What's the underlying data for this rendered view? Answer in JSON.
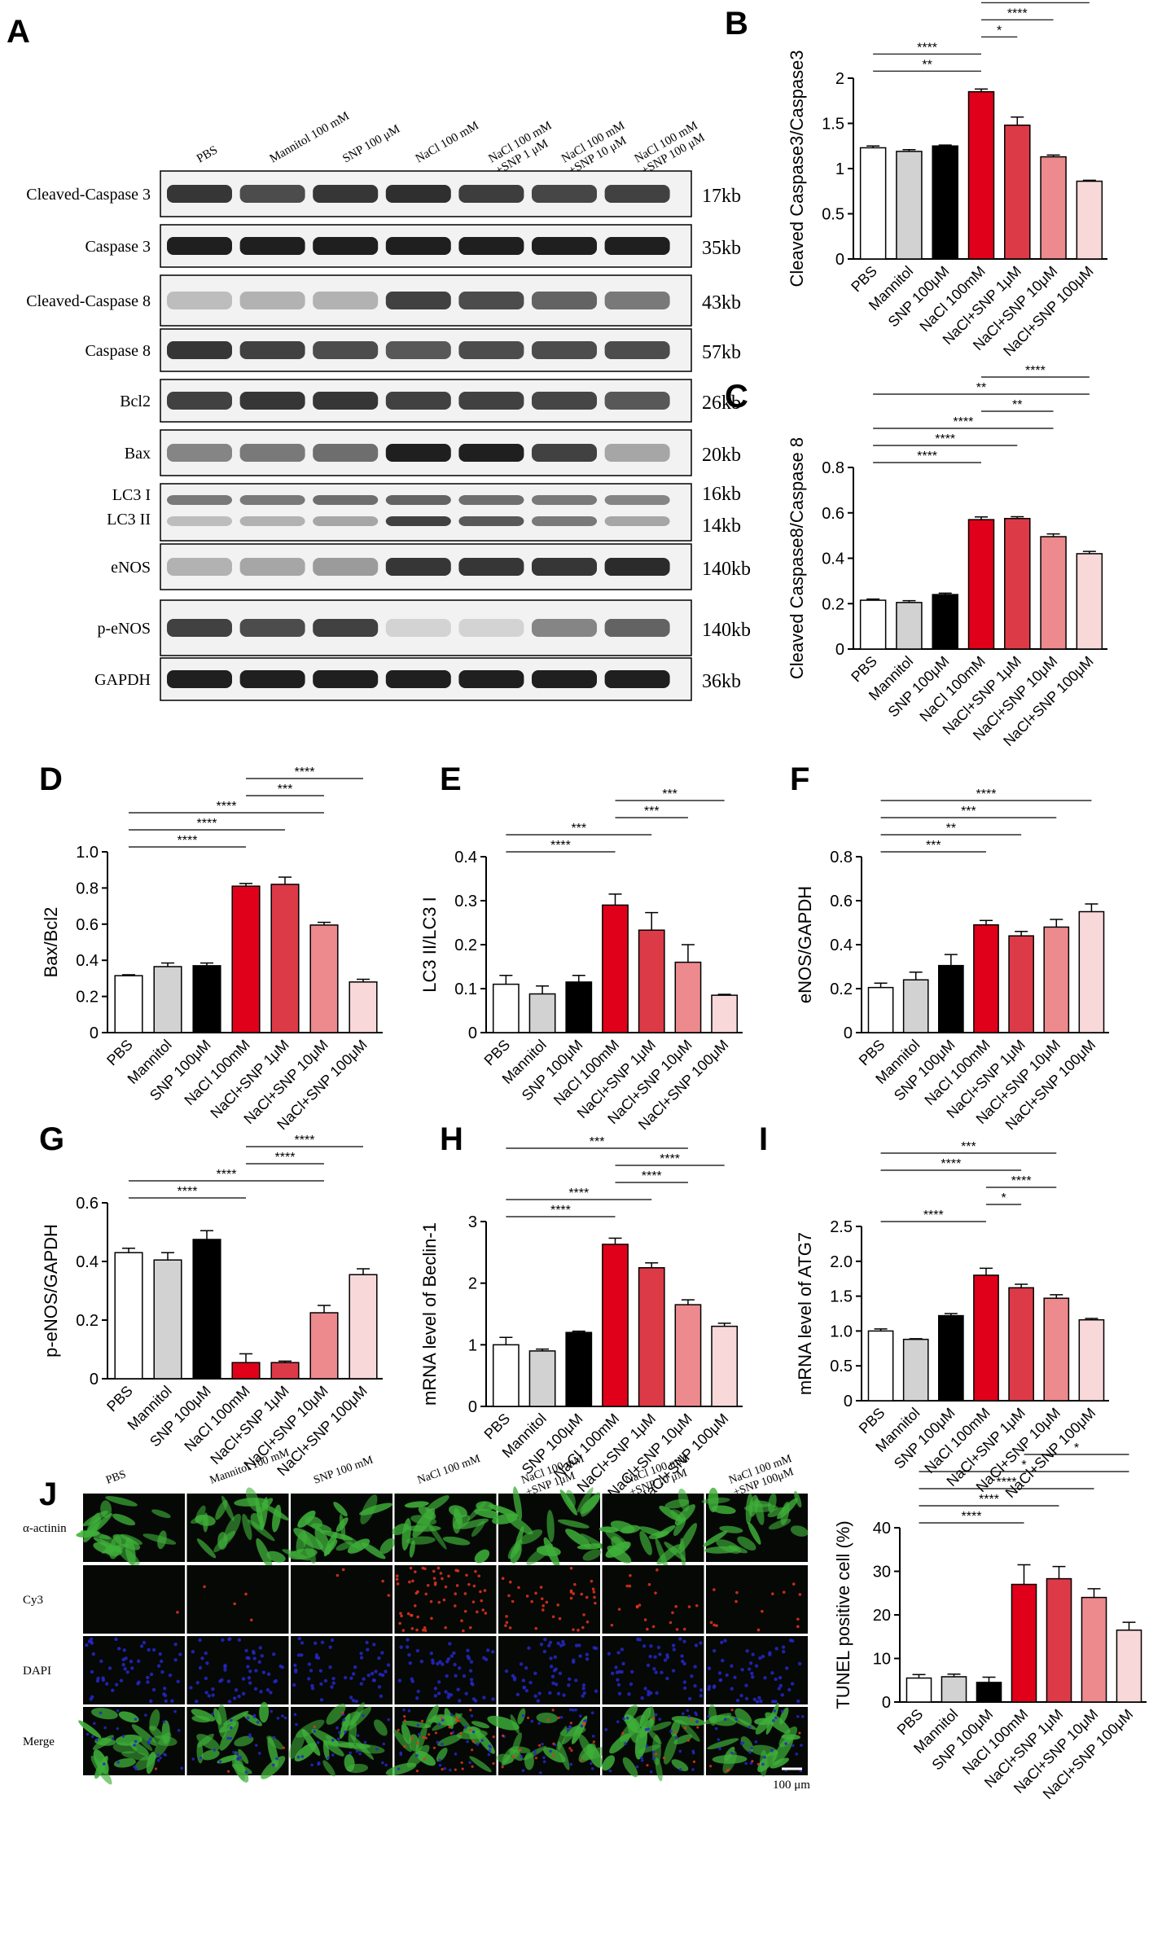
{
  "colors": {
    "bars": [
      "#ffffff",
      "#d2d2d2",
      "#000000",
      "#e1001a",
      "#dd3a47",
      "#ec8a8e",
      "#f9d8da"
    ],
    "bar_edge": "#000000",
    "alpha_actinin": "#3fb03a",
    "cy3": "#e8321e",
    "dapi": "#2727c8"
  },
  "western_blot": {
    "panel_label": "A",
    "lanes": [
      [
        "PBS"
      ],
      [
        "Mannitol 100 mM"
      ],
      [
        "SNP 100 μM"
      ],
      [
        "NaCl 100 mM"
      ],
      [
        "NaCl 100 mM",
        "+SNP 1 μM"
      ],
      [
        "NaCl 100 mM",
        "+SNP 10 μM"
      ],
      [
        "NaCl 100 mM",
        "+SNP 100 μM"
      ]
    ],
    "rows": [
      {
        "label": "Cleaved-Caspase 3",
        "size": "17kb",
        "intensity": [
          0.85,
          0.75,
          0.85,
          0.88,
          0.82,
          0.78,
          0.8
        ]
      },
      {
        "label": "Caspase 3",
        "size": "35kb",
        "intensity": [
          0.95,
          0.95,
          0.95,
          0.95,
          0.95,
          0.95,
          0.95
        ]
      },
      {
        "label": "Cleaved-Caspase 8",
        "size": "43kb",
        "intensity": [
          0.25,
          0.3,
          0.3,
          0.8,
          0.75,
          0.65,
          0.55
        ]
      },
      {
        "label": "Caspase 8",
        "size": "57kb",
        "intensity": [
          0.85,
          0.8,
          0.75,
          0.7,
          0.75,
          0.75,
          0.75
        ]
      },
      {
        "label": "Bcl2",
        "size": "26kb",
        "intensity": [
          0.8,
          0.85,
          0.85,
          0.8,
          0.8,
          0.78,
          0.7
        ]
      },
      {
        "label": "Bax",
        "size": "20kb",
        "intensity": [
          0.5,
          0.55,
          0.6,
          0.95,
          0.95,
          0.8,
          0.35
        ]
      },
      {
        "label": "LC3 I",
        "label2": "LC3 II",
        "size": "16kb",
        "size2": "14kb",
        "intensity": [
          0.55,
          0.55,
          0.6,
          0.65,
          0.6,
          0.55,
          0.5
        ],
        "intensity2": [
          0.25,
          0.3,
          0.35,
          0.8,
          0.7,
          0.55,
          0.35
        ]
      },
      {
        "label": "eNOS",
        "size": "140kb",
        "intensity": [
          0.3,
          0.35,
          0.4,
          0.85,
          0.85,
          0.85,
          0.9
        ]
      },
      {
        "label": "p-eNOS",
        "size": "140kb",
        "intensity": [
          0.8,
          0.75,
          0.8,
          0.15,
          0.15,
          0.5,
          0.65
        ]
      },
      {
        "label": "GAPDH",
        "size": "36kb",
        "intensity": [
          0.95,
          0.95,
          0.95,
          0.95,
          0.95,
          0.95,
          0.95
        ]
      }
    ]
  },
  "microscopy": {
    "panel_label": "J",
    "columns": [
      [
        "PBS"
      ],
      [
        "Mannitol 100 mM"
      ],
      [
        "SNP 100 mM"
      ],
      [
        "NaCl 100 mM"
      ],
      [
        "NaCl 100 mM",
        "+SNP 1μM"
      ],
      [
        "NaCl 100 mM",
        "+SNP 10 μM"
      ],
      [
        "NaCl 100 mM",
        "+SNP 100μM"
      ]
    ],
    "rows": [
      "α-actinin",
      "Cy3",
      "DAPI",
      "Merge"
    ],
    "cy3_density": [
      0.02,
      0.06,
      0.05,
      0.9,
      0.55,
      0.3,
      0.2
    ],
    "scale_bar": "100 μm"
  },
  "chart_data": [
    {
      "type": "bar",
      "panel": "B",
      "ylabel": "Cleaved Caspase3/Caspase3",
      "ylim": [
        0,
        2.0
      ],
      "ticks": [
        0,
        0.5,
        1.0,
        1.5,
        2.0
      ],
      "categories": [
        "PBS",
        "Mannitol",
        "SNP 100μM",
        "NaCl 100mM",
        "NaCl+SNP 1μM",
        "NaCl+SNP 10μM",
        "NaCl+SNP 100μM"
      ],
      "values": [
        1.23,
        1.19,
        1.25,
        1.85,
        1.48,
        1.13,
        0.86
      ],
      "errors": [
        0.02,
        0.02,
        0.01,
        0.03,
        0.09,
        0.02,
        0.01
      ],
      "significance": [
        {
          "from": 0,
          "to": 3,
          "label": "**"
        },
        {
          "from": 0,
          "to": 3,
          "label": "****"
        },
        {
          "from": 3,
          "to": 4,
          "label": "*"
        },
        {
          "from": 3,
          "to": 5,
          "label": "****"
        },
        {
          "from": 3,
          "to": 6,
          "label": "****"
        }
      ]
    },
    {
      "type": "bar",
      "panel": "C",
      "ylabel": "Cleaved Caspase8/Caspase 8",
      "ylim": [
        0,
        0.8
      ],
      "ticks": [
        0,
        0.2,
        0.4,
        0.6,
        0.8
      ],
      "categories": [
        "PBS",
        "Mannitol",
        "SNP 100μM",
        "NaCl 100mM",
        "NaCl+SNP 1μM",
        "NaCl+SNP 10μM",
        "NaCl+SNP 100μM"
      ],
      "values": [
        0.215,
        0.205,
        0.24,
        0.57,
        0.575,
        0.495,
        0.42
      ],
      "errors": [
        0.005,
        0.008,
        0.006,
        0.012,
        0.008,
        0.012,
        0.01
      ],
      "significance": [
        {
          "from": 0,
          "to": 3,
          "label": "****"
        },
        {
          "from": 0,
          "to": 4,
          "label": "****"
        },
        {
          "from": 0,
          "to": 5,
          "label": "****"
        },
        {
          "from": 3,
          "to": 5,
          "label": "**"
        },
        {
          "from": 0,
          "to": 6,
          "label": "**"
        },
        {
          "from": 3,
          "to": 6,
          "label": "****"
        }
      ]
    },
    {
      "type": "bar",
      "panel": "D",
      "ylabel": "Bax/Bcl2",
      "ylim": [
        0,
        1.0
      ],
      "ticks": [
        0,
        0.2,
        0.4,
        0.6,
        0.8,
        1.0
      ],
      "categories": [
        "PBS",
        "Mannitol",
        "SNP 100μM",
        "NaCl 100mM",
        "NaCl+SNP 1μM",
        "NaCl+SNP 10μM",
        "NaCl+SNP 100μM"
      ],
      "values": [
        0.315,
        0.365,
        0.37,
        0.81,
        0.82,
        0.595,
        0.28
      ],
      "errors": [
        0.005,
        0.02,
        0.015,
        0.015,
        0.04,
        0.015,
        0.015
      ],
      "significance": [
        {
          "from": 0,
          "to": 3,
          "label": "****"
        },
        {
          "from": 0,
          "to": 4,
          "label": "****"
        },
        {
          "from": 0,
          "to": 5,
          "label": "****"
        },
        {
          "from": 3,
          "to": 5,
          "label": "***"
        },
        {
          "from": 3,
          "to": 6,
          "label": "****"
        }
      ]
    },
    {
      "type": "bar",
      "panel": "E",
      "ylabel": "LC3 II/LC3 I",
      "ylim": [
        0,
        0.4
      ],
      "ticks": [
        0,
        0.1,
        0.2,
        0.3,
        0.4
      ],
      "categories": [
        "PBS",
        "Mannitol",
        "SNP 100μM",
        "NaCl 100mM",
        "NaCl+SNP 1μM",
        "NaCl+SNP 10μM",
        "NaCl+SNP 100μM"
      ],
      "values": [
        0.11,
        0.088,
        0.115,
        0.29,
        0.233,
        0.16,
        0.085
      ],
      "errors": [
        0.02,
        0.018,
        0.015,
        0.025,
        0.04,
        0.04,
        0.002
      ],
      "significance": [
        {
          "from": 0,
          "to": 3,
          "label": "****"
        },
        {
          "from": 0,
          "to": 4,
          "label": "***"
        },
        {
          "from": 3,
          "to": 5,
          "label": "***"
        },
        {
          "from": 3,
          "to": 6,
          "label": "***"
        }
      ]
    },
    {
      "type": "bar",
      "panel": "F",
      "ylabel": "eNOS/GAPDH",
      "ylim": [
        0,
        0.8
      ],
      "ticks": [
        0,
        0.2,
        0.4,
        0.6,
        0.8
      ],
      "categories": [
        "PBS",
        "Mannitol",
        "SNP 100μM",
        "NaCl 100mM",
        "NaCl+SNP 1μM",
        "NaCl+SNP 10μM",
        "NaCl+SNP 100μM"
      ],
      "values": [
        0.205,
        0.24,
        0.305,
        0.49,
        0.44,
        0.48,
        0.55
      ],
      "errors": [
        0.02,
        0.035,
        0.05,
        0.02,
        0.02,
        0.035,
        0.035
      ],
      "significance": [
        {
          "from": 0,
          "to": 3,
          "label": "***"
        },
        {
          "from": 0,
          "to": 4,
          "label": "**"
        },
        {
          "from": 0,
          "to": 5,
          "label": "***"
        },
        {
          "from": 0,
          "to": 6,
          "label": "****"
        }
      ]
    },
    {
      "type": "bar",
      "panel": "G",
      "ylabel": "p-eNOS/GAPDH",
      "ylim": [
        0,
        0.6
      ],
      "ticks": [
        0,
        0.2,
        0.4,
        0.6
      ],
      "categories": [
        "PBS",
        "Mannitol",
        "SNP 100μM",
        "NaCl 100mM",
        "NaCl+SNP 1μM",
        "NaCl+SNP 10μM",
        "NaCl+SNP 100μM"
      ],
      "values": [
        0.43,
        0.405,
        0.475,
        0.055,
        0.055,
        0.225,
        0.355
      ],
      "errors": [
        0.015,
        0.025,
        0.03,
        0.03,
        0.005,
        0.025,
        0.02
      ],
      "significance": [
        {
          "from": 0,
          "to": 3,
          "label": "****"
        },
        {
          "from": 0,
          "to": 5,
          "label": "****"
        },
        {
          "from": 3,
          "to": 5,
          "label": "****"
        },
        {
          "from": 3,
          "to": 6,
          "label": "****"
        }
      ]
    },
    {
      "type": "bar",
      "panel": "H",
      "ylabel": "mRNA level of Beclin-1",
      "ylim": [
        0,
        3
      ],
      "ticks": [
        0,
        1,
        2,
        3
      ],
      "categories": [
        "PBS",
        "Mannitol",
        "SNP 100μM",
        "NaCl 100mM",
        "NaCl+SNP 1μM",
        "NaCl+SNP 10μM",
        "NaCl+SNP 100μM"
      ],
      "values": [
        1.0,
        0.9,
        1.2,
        2.63,
        2.25,
        1.65,
        1.3
      ],
      "errors": [
        0.12,
        0.03,
        0.02,
        0.1,
        0.08,
        0.08,
        0.05
      ],
      "significance": [
        {
          "from": 0,
          "to": 3,
          "label": "****"
        },
        {
          "from": 0,
          "to": 4,
          "label": "****"
        },
        {
          "from": 3,
          "to": 5,
          "label": "****"
        },
        {
          "from": 3,
          "to": 6,
          "label": "****"
        },
        {
          "from": 0,
          "to": 5,
          "label": "***"
        }
      ]
    },
    {
      "type": "bar",
      "panel": "I",
      "ylabel": "mRNA level of ATG7",
      "ylim": [
        0,
        2.5
      ],
      "ticks": [
        0,
        0.5,
        1.0,
        1.5,
        2.0,
        2.5
      ],
      "categories": [
        "PBS",
        "Mannitol",
        "SNP 100μM",
        "NaCl 100mM",
        "NaCl+SNP 1μM",
        "NaCl+SNP 10μM",
        "NaCl+SNP 100μM"
      ],
      "values": [
        1.0,
        0.88,
        1.22,
        1.8,
        1.62,
        1.47,
        1.16
      ],
      "errors": [
        0.03,
        0.01,
        0.03,
        0.1,
        0.05,
        0.05,
        0.02
      ],
      "significance": [
        {
          "from": 0,
          "to": 3,
          "label": "****"
        },
        {
          "from": 3,
          "to": 4,
          "label": "*"
        },
        {
          "from": 3,
          "to": 5,
          "label": "****"
        },
        {
          "from": 0,
          "to": 4,
          "label": "****"
        },
        {
          "from": 0,
          "to": 5,
          "label": "***"
        }
      ]
    },
    {
      "type": "bar",
      "panel": "J",
      "ylabel": "TUNEL positive cell (%)",
      "ylim": [
        0,
        40
      ],
      "ticks": [
        0,
        10,
        20,
        30,
        40
      ],
      "categories": [
        "PBS",
        "Mannitol",
        "SNP 100μM",
        "NaCl 100mM",
        "NaCl+SNP 1μM",
        "NaCl+SNP 10μM",
        "NaCl+SNP 100μM"
      ],
      "values": [
        5.5,
        5.8,
        4.5,
        27,
        28.3,
        24,
        16.5
      ],
      "errors": [
        0.8,
        0.6,
        1.2,
        4.5,
        2.8,
        2.0,
        1.8
      ],
      "significance": [
        {
          "from": 0,
          "to": 3,
          "label": "****"
        },
        {
          "from": 0,
          "to": 4,
          "label": "****"
        },
        {
          "from": 0,
          "to": 5,
          "label": "****"
        },
        {
          "from": 0,
          "to": 6,
          "label": "*"
        },
        {
          "from": 3,
          "to": 6,
          "label": "*"
        }
      ]
    }
  ]
}
